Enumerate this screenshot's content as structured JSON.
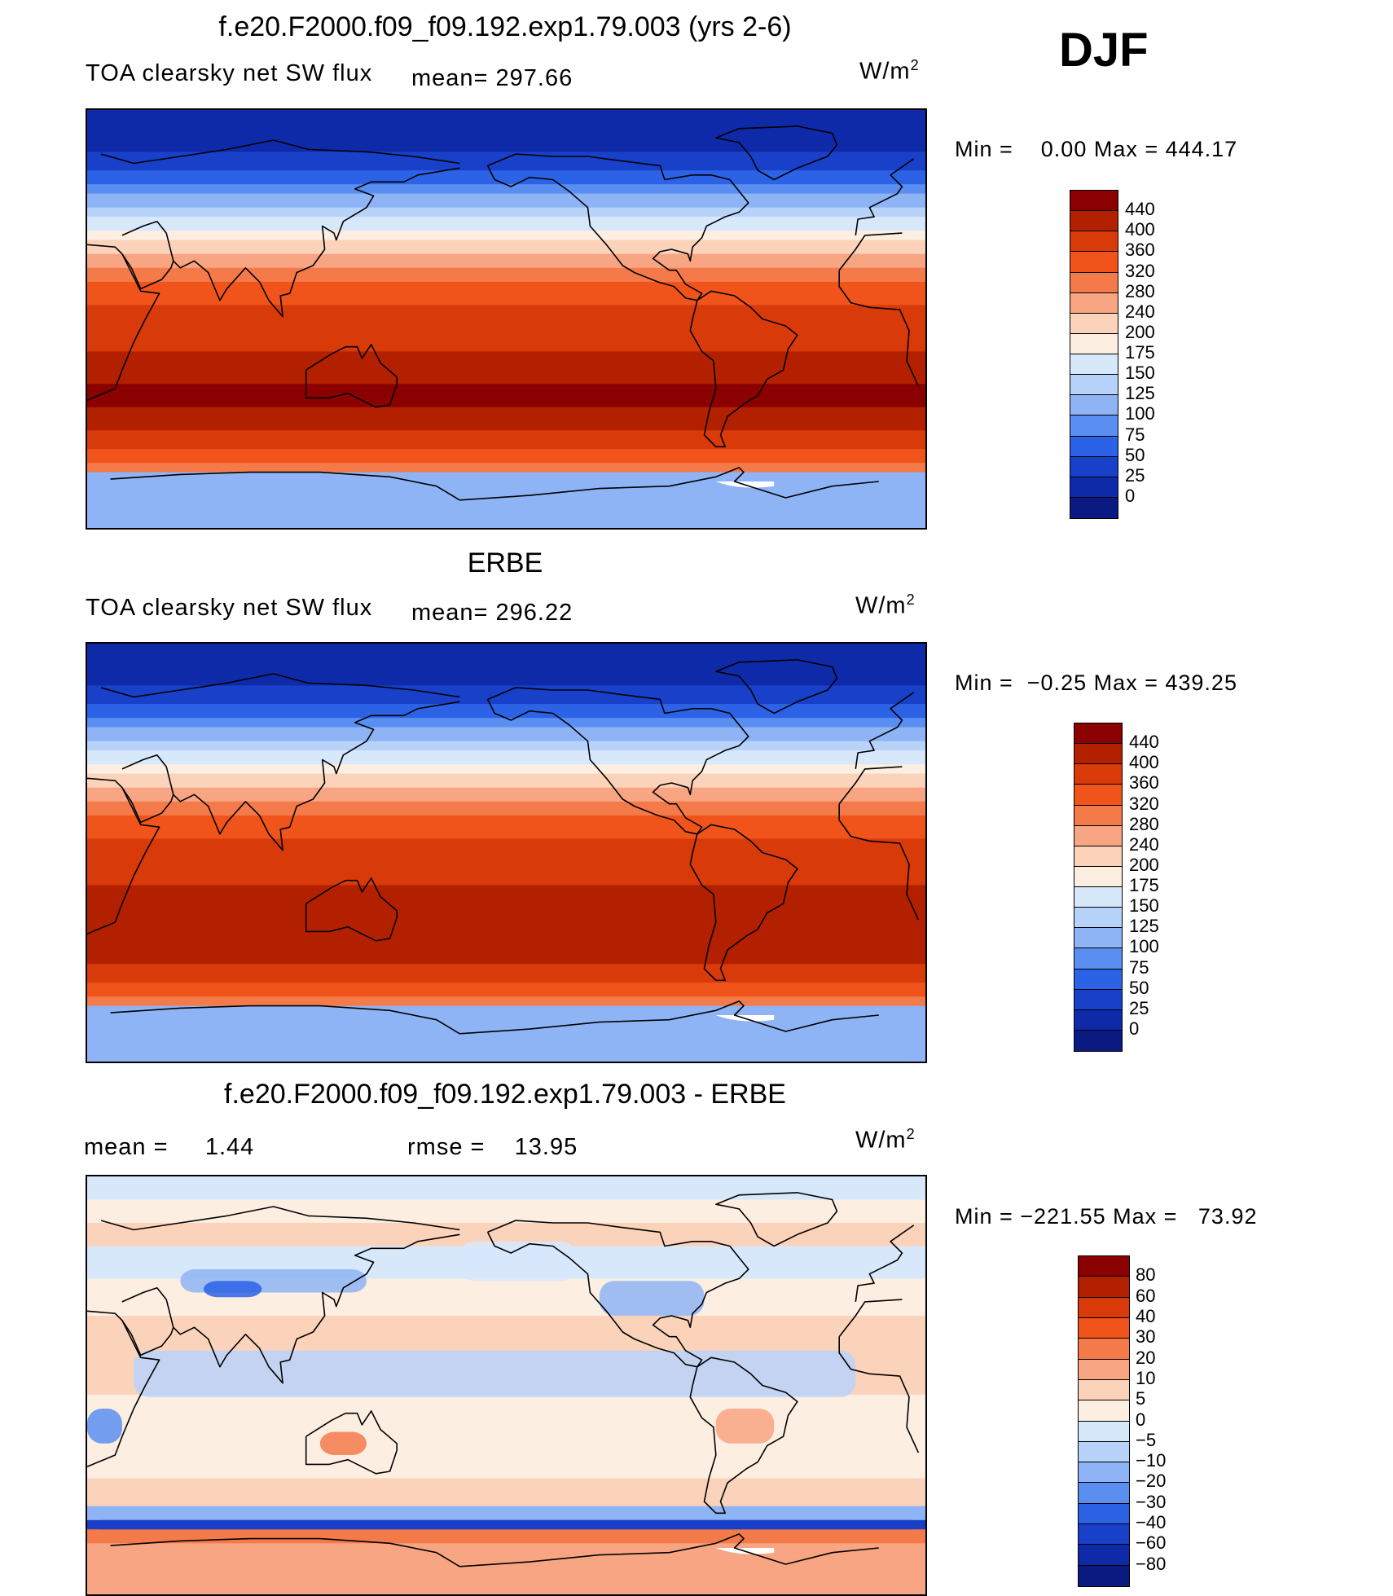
{
  "season": "DJF",
  "panels": [
    {
      "title": "f.e20.F2000.f09_f09.192.exp1.79.003 (yrs 2-6)",
      "left_label": "TOA clearsky net SW flux",
      "mean_text": "mean= 297.66",
      "units": "W/m",
      "units_sup": "2",
      "minmax": "Min =    0.00 Max = 444.17",
      "colorbar": {
        "labels": [
          "440",
          "400",
          "360",
          "320",
          "280",
          "240",
          "200",
          "175",
          "150",
          "125",
          "100",
          "75",
          "50",
          "25",
          "0"
        ],
        "colors": [
          "#8b0000",
          "#b22000",
          "#d93a0a",
          "#f0541a",
          "#f47a4a",
          "#f7a582",
          "#fbd2ba",
          "#fdeee2",
          "#d8e8fb",
          "#b8d3fa",
          "#8fb4f5",
          "#5a8ef0",
          "#2c63e6",
          "#1840c8",
          "#0e2aa8",
          "#0a1a80"
        ]
      },
      "field": "model"
    },
    {
      "title": "ERBE",
      "left_label": "TOA clearsky net SW flux",
      "mean_text": "mean= 296.22",
      "units": "W/m",
      "units_sup": "2",
      "minmax": "Min =  −0.25 Max = 439.25",
      "colorbar": {
        "labels": [
          "440",
          "400",
          "360",
          "320",
          "280",
          "240",
          "200",
          "175",
          "150",
          "125",
          "100",
          "75",
          "50",
          "25",
          "0"
        ],
        "colors": [
          "#8b0000",
          "#b22000",
          "#d93a0a",
          "#f0541a",
          "#f47a4a",
          "#f7a582",
          "#fbd2ba",
          "#fdeee2",
          "#d8e8fb",
          "#b8d3fa",
          "#8fb4f5",
          "#5a8ef0",
          "#2c63e6",
          "#1840c8",
          "#0e2aa8",
          "#0a1a80"
        ]
      },
      "field": "obs"
    },
    {
      "title": "f.e20.F2000.f09_f09.192.exp1.79.003 - ERBE",
      "left_label": "mean =     1.44",
      "mean_text": "rmse =    13.95",
      "units": "W/m",
      "units_sup": "2",
      "minmax": "Min = −221.55 Max =   73.92",
      "colorbar": {
        "labels": [
          "80",
          "60",
          "40",
          "30",
          "20",
          "10",
          "5",
          "0",
          "−5",
          "−10",
          "−20",
          "−30",
          "−40",
          "−60",
          "−80"
        ],
        "colors": [
          "#8b0000",
          "#b22000",
          "#d93a0a",
          "#f0541a",
          "#f47a4a",
          "#f7a582",
          "#fbd2ba",
          "#fdeee2",
          "#d8e8fb",
          "#b8d3fa",
          "#8fb4f5",
          "#5a8ef0",
          "#2c63e6",
          "#1840c8",
          "#0e2aa8",
          "#0a1a80"
        ]
      },
      "field": "diff"
    }
  ]
}
